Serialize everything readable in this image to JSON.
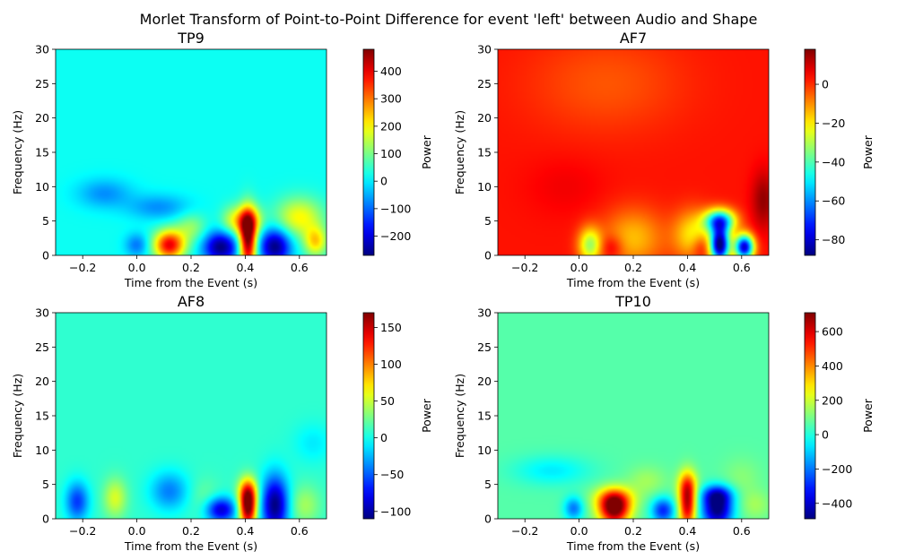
{
  "figure": {
    "suptitle": "Morlet Transform of Point-to-Point Difference for event 'left' between Audio and Shape"
  },
  "chart_data": [
    {
      "type": "heatmap",
      "title": "TP9",
      "xlabel": "Time from the Event (s)",
      "ylabel": "Frequency (Hz)",
      "xlim": [
        -0.3,
        0.7
      ],
      "ylim": [
        0,
        30
      ],
      "xticks": [
        -0.2,
        0.0,
        0.2,
        0.4,
        0.6
      ],
      "xtick_labels": [
        "−0.2",
        "0.0",
        "0.2",
        "0.4",
        "0.6"
      ],
      "yticks": [
        0,
        5,
        10,
        15,
        20,
        25,
        30
      ],
      "ytick_labels": [
        "0",
        "5",
        "10",
        "15",
        "20",
        "25",
        "30"
      ],
      "colorbar": {
        "label": "Power",
        "vmin": -270,
        "vmax": 480,
        "ticks": [
          -200,
          -100,
          0,
          100,
          200,
          300,
          400
        ],
        "tick_labels": [
          "−200",
          "−100",
          "0",
          "100",
          "200",
          "300",
          "400"
        ]
      },
      "base_value": 20,
      "blobs": [
        {
          "t": 0.12,
          "f": 1.5,
          "value": 400,
          "st": 0.04,
          "sf": 1.5
        },
        {
          "t": 0.31,
          "f": 1.2,
          "value": -270,
          "st": 0.045,
          "sf": 1.6
        },
        {
          "t": 0.41,
          "f": 2.0,
          "value": 480,
          "st": 0.022,
          "sf": 3.0
        },
        {
          "t": 0.41,
          "f": 5.0,
          "value": 260,
          "st": 0.035,
          "sf": 1.5
        },
        {
          "t": 0.51,
          "f": 1.3,
          "value": -270,
          "st": 0.04,
          "sf": 1.8
        },
        {
          "t": 0.0,
          "f": 1.5,
          "value": -90,
          "st": 0.03,
          "sf": 1.2
        },
        {
          "t": -0.12,
          "f": 9.0,
          "value": -70,
          "st": 0.07,
          "sf": 1.5
        },
        {
          "t": 0.08,
          "f": 7.0,
          "value": -70,
          "st": 0.08,
          "sf": 1.3
        },
        {
          "t": 0.6,
          "f": 5.5,
          "value": 200,
          "st": 0.06,
          "sf": 2.0
        },
        {
          "t": 0.66,
          "f": 2.0,
          "value": 220,
          "st": 0.03,
          "sf": 1.5
        },
        {
          "t": 0.2,
          "f": 4.0,
          "value": 120,
          "st": 0.04,
          "sf": 1.5
        },
        {
          "t": 0.35,
          "f": 5.0,
          "value": 130,
          "st": 0.03,
          "sf": 1.5
        }
      ]
    },
    {
      "type": "heatmap",
      "title": "AF7",
      "xlabel": "Time from the Event (s)",
      "ylabel": "Frequency (Hz)",
      "xlim": [
        -0.3,
        0.7
      ],
      "ylim": [
        0,
        30
      ],
      "xticks": [
        -0.2,
        0.0,
        0.2,
        0.4,
        0.6
      ],
      "xtick_labels": [
        "−0.2",
        "0.0",
        "0.2",
        "0.4",
        "0.6"
      ],
      "yticks": [
        0,
        5,
        10,
        15,
        20,
        25,
        30
      ],
      "ytick_labels": [
        "0",
        "5",
        "10",
        "15",
        "20",
        "25",
        "30"
      ],
      "colorbar": {
        "label": "Power",
        "vmin": -88,
        "vmax": 18,
        "ticks": [
          -80,
          -60,
          -40,
          -20,
          0
        ],
        "tick_labels": [
          "−80",
          "−60",
          "−40",
          "−20",
          "0"
        ]
      },
      "base_value": 3,
      "blobs": [
        {
          "t": 0.52,
          "f": 1.5,
          "value": -88,
          "st": 0.025,
          "sf": 1.8
        },
        {
          "t": 0.52,
          "f": 5.0,
          "value": -60,
          "st": 0.04,
          "sf": 1.2
        },
        {
          "t": 0.61,
          "f": 1.2,
          "value": -80,
          "st": 0.025,
          "sf": 1.3
        },
        {
          "t": 0.04,
          "f": 1.5,
          "value": -30,
          "st": 0.03,
          "sf": 1.8
        },
        {
          "t": 0.2,
          "f": 2.5,
          "value": -15,
          "st": 0.08,
          "sf": 3.0
        },
        {
          "t": 0.42,
          "f": 3.0,
          "value": -20,
          "st": 0.05,
          "sf": 2.5
        },
        {
          "t": 0.12,
          "f": 1.2,
          "value": 14,
          "st": 0.03,
          "sf": 1.2
        },
        {
          "t": 0.45,
          "f": 1.2,
          "value": 14,
          "st": 0.025,
          "sf": 1.2
        },
        {
          "t": 0.68,
          "f": 8.0,
          "value": 16,
          "st": 0.03,
          "sf": 3.0
        },
        {
          "t": -0.05,
          "f": 10.0,
          "value": 6,
          "st": 0.1,
          "sf": 3.0
        },
        {
          "t": 0.1,
          "f": 25.0,
          "value": -4,
          "st": 0.2,
          "sf": 5.0
        }
      ]
    },
    {
      "type": "heatmap",
      "title": "AF8",
      "xlabel": "Time from the Event (s)",
      "ylabel": "Frequency (Hz)",
      "xlim": [
        -0.3,
        0.7
      ],
      "ylim": [
        0,
        30
      ],
      "xticks": [
        -0.2,
        0.0,
        0.2,
        0.4,
        0.6
      ],
      "xtick_labels": [
        "−0.2",
        "0.0",
        "0.2",
        "0.4",
        "0.6"
      ],
      "yticks": [
        0,
        5,
        10,
        15,
        20,
        25,
        30
      ],
      "ytick_labels": [
        "0",
        "5",
        "10",
        "15",
        "20",
        "25",
        "30"
      ],
      "colorbar": {
        "label": "Power",
        "vmin": -110,
        "vmax": 170,
        "ticks": [
          -100,
          -50,
          0,
          50,
          100,
          150
        ],
        "tick_labels": [
          "−100",
          "−50",
          "0",
          "50",
          "100",
          "150"
        ]
      },
      "base_value": 8,
      "blobs": [
        {
          "t": 0.41,
          "f": 1.5,
          "value": 170,
          "st": 0.022,
          "sf": 2.0
        },
        {
          "t": 0.41,
          "f": 4.0,
          "value": 90,
          "st": 0.025,
          "sf": 1.5
        },
        {
          "t": 0.51,
          "f": 2.0,
          "value": -110,
          "st": 0.035,
          "sf": 3.0
        },
        {
          "t": 0.31,
          "f": 1.3,
          "value": -90,
          "st": 0.04,
          "sf": 1.3
        },
        {
          "t": -0.08,
          "f": 3.0,
          "value": 55,
          "st": 0.03,
          "sf": 2.0
        },
        {
          "t": -0.22,
          "f": 2.5,
          "value": -60,
          "st": 0.03,
          "sf": 2.0
        },
        {
          "t": 0.12,
          "f": 4.0,
          "value": -40,
          "st": 0.05,
          "sf": 2.0
        },
        {
          "t": 0.25,
          "f": 3.0,
          "value": 25,
          "st": 0.04,
          "sf": 2.0
        },
        {
          "t": 0.62,
          "f": 2.0,
          "value": 40,
          "st": 0.04,
          "sf": 2.0
        },
        {
          "t": 0.65,
          "f": 11.0,
          "value": -10,
          "st": 0.05,
          "sf": 2.0
        }
      ]
    },
    {
      "type": "heatmap",
      "title": "TP10",
      "xlabel": "Time from the Event (s)",
      "ylabel": "Frequency (Hz)",
      "xlim": [
        -0.3,
        0.7
      ],
      "ylim": [
        0,
        30
      ],
      "xticks": [
        -0.2,
        0.0,
        0.2,
        0.4,
        0.6
      ],
      "xtick_labels": [
        "−0.2",
        "0.0",
        "0.2",
        "0.4",
        "0.6"
      ],
      "yticks": [
        0,
        5,
        10,
        15,
        20,
        25,
        30
      ],
      "ytick_labels": [
        "0",
        "5",
        "10",
        "15",
        "20",
        "25",
        "30"
      ],
      "colorbar": {
        "label": "Power",
        "vmin": -490,
        "vmax": 710,
        "ticks": [
          -400,
          -200,
          0,
          200,
          400,
          600
        ],
        "tick_labels": [
          "−400",
          "−200",
          "0",
          "200",
          "400",
          "600"
        ]
      },
      "base_value": 60,
      "blobs": [
        {
          "t": 0.13,
          "f": 1.3,
          "value": 700,
          "st": 0.04,
          "sf": 1.6
        },
        {
          "t": 0.13,
          "f": 3.0,
          "value": 350,
          "st": 0.05,
          "sf": 1.2
        },
        {
          "t": 0.4,
          "f": 2.0,
          "value": 620,
          "st": 0.022,
          "sf": 2.5
        },
        {
          "t": 0.4,
          "f": 5.0,
          "value": 300,
          "st": 0.025,
          "sf": 1.5
        },
        {
          "t": 0.51,
          "f": 1.3,
          "value": -490,
          "st": 0.04,
          "sf": 1.8
        },
        {
          "t": 0.51,
          "f": 3.5,
          "value": -250,
          "st": 0.04,
          "sf": 1.0
        },
        {
          "t": 0.31,
          "f": 1.2,
          "value": -300,
          "st": 0.03,
          "sf": 1.3
        },
        {
          "t": -0.02,
          "f": 1.5,
          "value": -200,
          "st": 0.025,
          "sf": 1.2
        },
        {
          "t": 0.25,
          "f": 5.5,
          "value": 150,
          "st": 0.05,
          "sf": 1.5
        },
        {
          "t": -0.1,
          "f": 7.0,
          "value": -60,
          "st": 0.1,
          "sf": 1.5
        },
        {
          "t": 0.6,
          "f": 6.0,
          "value": 120,
          "st": 0.05,
          "sf": 2.0
        },
        {
          "t": 0.65,
          "f": 2.0,
          "value": 150,
          "st": 0.04,
          "sf": 1.5
        }
      ]
    }
  ]
}
